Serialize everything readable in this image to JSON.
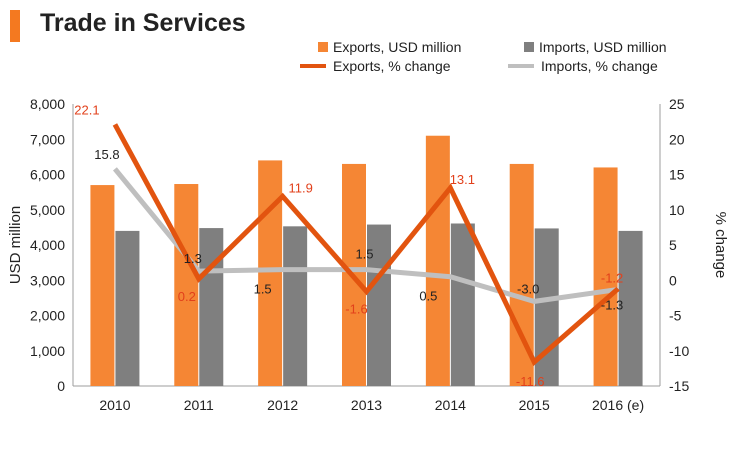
{
  "chart_data": {
    "type": "bar",
    "title": "Trade in Services",
    "categories": [
      "2010",
      "2011",
      "2012",
      "2013",
      "2014",
      "2015",
      "2016 (e)"
    ],
    "series": [
      {
        "name": "Exports, USD million",
        "kind": "bar",
        "axis": "left",
        "color": "#F58634",
        "values": [
          5700,
          5730,
          6400,
          6300,
          7100,
          6300,
          6200
        ]
      },
      {
        "name": "Imports, USD million",
        "kind": "bar",
        "axis": "left",
        "color": "#7F7F7F",
        "values": [
          4400,
          4480,
          4530,
          4580,
          4610,
          4470,
          4400
        ]
      },
      {
        "name": "Exports, % change",
        "kind": "line",
        "axis": "right",
        "color": "#E2540F",
        "values": [
          22.1,
          0.2,
          11.9,
          -1.6,
          13.1,
          -11.6,
          -1.2
        ],
        "labels": [
          "22.1",
          "0.2",
          "11.9",
          "-1.6",
          "13.1",
          "-11.6",
          "-1.2"
        ]
      },
      {
        "name": "Imports, % change",
        "kind": "line",
        "axis": "right",
        "color": "#BFBFBF",
        "values": [
          15.8,
          1.3,
          1.5,
          1.5,
          0.5,
          -3.0,
          -1.3
        ],
        "labels": [
          "15.8",
          "1.3",
          "1.5",
          "1.5",
          "0.5",
          "-3.0",
          "-1.3"
        ]
      }
    ],
    "ylabel": "USD million",
    "y2label": "% change",
    "ylim": [
      0,
      8000
    ],
    "y2lim": [
      -15,
      25
    ],
    "yticks": [
      "0",
      "1,000",
      "2,000",
      "3,000",
      "4,000",
      "5,000",
      "6,000",
      "7,000",
      "8,000"
    ],
    "y2ticks": [
      "-15",
      "-10",
      "-5",
      "0",
      "5",
      "10",
      "15",
      "20",
      "25"
    ],
    "legend_position": "top-right",
    "export_label_color": "#E2401B",
    "import_label_color": "#222222"
  }
}
